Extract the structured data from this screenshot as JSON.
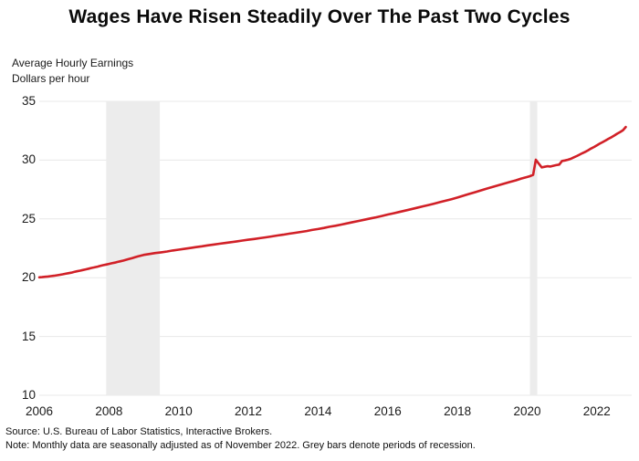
{
  "title": "Wages Have Risen Steadily Over The Past Two Cycles",
  "subtitle": {
    "line1": "Average Hourly Earnings",
    "line2": "Dollars per hour"
  },
  "footnotes": {
    "source": "Source: U.S. Bureau of Labor Statistics, Interactive Brokers.",
    "note": "Note: Monthly data are seasonally adjusted as of November 2022. Grey bars denote periods of recession."
  },
  "colors": {
    "line": "#d12027",
    "recession_band": "#ececec",
    "gridline": "#e8e8e8",
    "text": "#1a1a1a"
  },
  "chart_data": {
    "type": "line",
    "title": "Wages Have Risen Steadily Over The Past Two Cycles",
    "xlabel": "",
    "ylabel": "Average Hourly Earnings, Dollars per hour",
    "xlim": [
      2006,
      2023
    ],
    "ylim": [
      10,
      35
    ],
    "xticks": [
      2006,
      2008,
      2010,
      2012,
      2014,
      2016,
      2018,
      2020,
      2022
    ],
    "yticks": [
      10,
      15,
      20,
      25,
      30,
      35
    ],
    "grid": "horizontal",
    "legend": "none",
    "recession_bands": [
      {
        "start": 2007.92,
        "end": 2009.46
      },
      {
        "start": 2020.08,
        "end": 2020.29
      }
    ],
    "series": [
      {
        "name": "Average Hourly Earnings (dollars per hour)",
        "points": [
          [
            2006.0,
            20.03
          ],
          [
            2006.08,
            20.05
          ],
          [
            2006.17,
            20.08
          ],
          [
            2006.25,
            20.1
          ],
          [
            2006.33,
            20.13
          ],
          [
            2006.42,
            20.16
          ],
          [
            2006.5,
            20.2
          ],
          [
            2006.58,
            20.24
          ],
          [
            2006.67,
            20.29
          ],
          [
            2006.75,
            20.33
          ],
          [
            2006.83,
            20.38
          ],
          [
            2006.92,
            20.43
          ],
          [
            2007.0,
            20.49
          ],
          [
            2007.08,
            20.54
          ],
          [
            2007.17,
            20.6
          ],
          [
            2007.25,
            20.65
          ],
          [
            2007.33,
            20.71
          ],
          [
            2007.42,
            20.77
          ],
          [
            2007.5,
            20.83
          ],
          [
            2007.58,
            20.88
          ],
          [
            2007.67,
            20.94
          ],
          [
            2007.75,
            21.0
          ],
          [
            2007.83,
            21.06
          ],
          [
            2007.92,
            21.12
          ],
          [
            2008.0,
            21.17
          ],
          [
            2008.08,
            21.23
          ],
          [
            2008.17,
            21.28
          ],
          [
            2008.25,
            21.34
          ],
          [
            2008.33,
            21.4
          ],
          [
            2008.42,
            21.46
          ],
          [
            2008.5,
            21.53
          ],
          [
            2008.58,
            21.6
          ],
          [
            2008.67,
            21.67
          ],
          [
            2008.75,
            21.74
          ],
          [
            2008.83,
            21.81
          ],
          [
            2008.92,
            21.88
          ],
          [
            2009.0,
            21.94
          ],
          [
            2009.17,
            22.02
          ],
          [
            2009.33,
            22.1
          ],
          [
            2009.5,
            22.16
          ],
          [
            2009.67,
            22.23
          ],
          [
            2009.83,
            22.31
          ],
          [
            2010.0,
            22.38
          ],
          [
            2010.17,
            22.45
          ],
          [
            2010.33,
            22.52
          ],
          [
            2010.5,
            22.6
          ],
          [
            2010.67,
            22.67
          ],
          [
            2010.83,
            22.75
          ],
          [
            2011.0,
            22.82
          ],
          [
            2011.17,
            22.89
          ],
          [
            2011.33,
            22.95
          ],
          [
            2011.5,
            23.02
          ],
          [
            2011.67,
            23.09
          ],
          [
            2011.83,
            23.16
          ],
          [
            2012.0,
            23.23
          ],
          [
            2012.17,
            23.29
          ],
          [
            2012.33,
            23.36
          ],
          [
            2012.5,
            23.43
          ],
          [
            2012.67,
            23.51
          ],
          [
            2012.83,
            23.59
          ],
          [
            2013.0,
            23.66
          ],
          [
            2013.17,
            23.74
          ],
          [
            2013.33,
            23.81
          ],
          [
            2013.5,
            23.89
          ],
          [
            2013.67,
            23.97
          ],
          [
            2013.83,
            24.06
          ],
          [
            2014.0,
            24.14
          ],
          [
            2014.17,
            24.23
          ],
          [
            2014.33,
            24.33
          ],
          [
            2014.5,
            24.42
          ],
          [
            2014.67,
            24.52
          ],
          [
            2014.83,
            24.62
          ],
          [
            2015.0,
            24.73
          ],
          [
            2015.17,
            24.83
          ],
          [
            2015.33,
            24.93
          ],
          [
            2015.5,
            25.04
          ],
          [
            2015.67,
            25.14
          ],
          [
            2015.83,
            25.25
          ],
          [
            2016.0,
            25.37
          ],
          [
            2016.17,
            25.48
          ],
          [
            2016.33,
            25.59
          ],
          [
            2016.5,
            25.71
          ],
          [
            2016.67,
            25.82
          ],
          [
            2016.83,
            25.94
          ],
          [
            2017.0,
            26.06
          ],
          [
            2017.17,
            26.18
          ],
          [
            2017.33,
            26.3
          ],
          [
            2017.5,
            26.43
          ],
          [
            2017.67,
            26.55
          ],
          [
            2017.83,
            26.68
          ],
          [
            2018.0,
            26.82
          ],
          [
            2018.17,
            26.97
          ],
          [
            2018.33,
            27.12
          ],
          [
            2018.5,
            27.27
          ],
          [
            2018.67,
            27.42
          ],
          [
            2018.83,
            27.57
          ],
          [
            2019.0,
            27.71
          ],
          [
            2019.17,
            27.86
          ],
          [
            2019.33,
            28.0
          ],
          [
            2019.5,
            28.14
          ],
          [
            2019.67,
            28.28
          ],
          [
            2019.83,
            28.43
          ],
          [
            2020.0,
            28.56
          ],
          [
            2020.08,
            28.63
          ],
          [
            2020.17,
            28.74
          ],
          [
            2020.25,
            30.03
          ],
          [
            2020.33,
            29.71
          ],
          [
            2020.42,
            29.38
          ],
          [
            2020.5,
            29.43
          ],
          [
            2020.58,
            29.48
          ],
          [
            2020.67,
            29.46
          ],
          [
            2020.75,
            29.52
          ],
          [
            2020.83,
            29.57
          ],
          [
            2020.92,
            29.62
          ],
          [
            2021.0,
            29.92
          ],
          [
            2021.08,
            29.97
          ],
          [
            2021.17,
            30.03
          ],
          [
            2021.25,
            30.11
          ],
          [
            2021.33,
            30.22
          ],
          [
            2021.42,
            30.34
          ],
          [
            2021.5,
            30.46
          ],
          [
            2021.58,
            30.58
          ],
          [
            2021.67,
            30.71
          ],
          [
            2021.75,
            30.84
          ],
          [
            2021.83,
            30.98
          ],
          [
            2021.92,
            31.12
          ],
          [
            2022.0,
            31.26
          ],
          [
            2022.08,
            31.4
          ],
          [
            2022.17,
            31.54
          ],
          [
            2022.25,
            31.67
          ],
          [
            2022.33,
            31.81
          ],
          [
            2022.42,
            31.95
          ],
          [
            2022.5,
            32.09
          ],
          [
            2022.58,
            32.24
          ],
          [
            2022.67,
            32.39
          ],
          [
            2022.75,
            32.55
          ],
          [
            2022.83,
            32.82
          ]
        ]
      }
    ]
  }
}
